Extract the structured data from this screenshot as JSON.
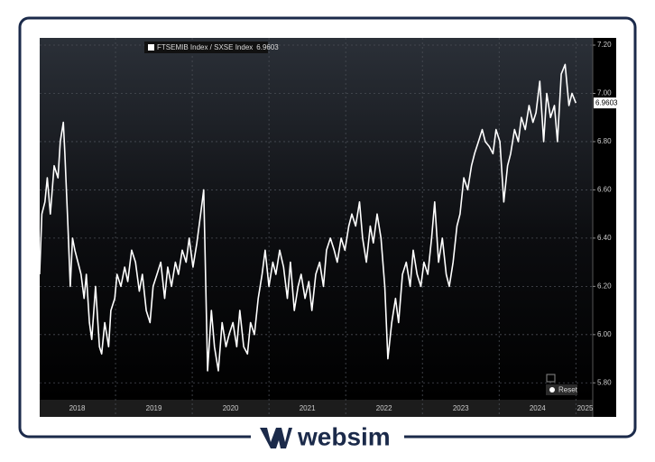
{
  "chart_data": {
    "type": "line",
    "legend_name": "FTSEMIB Index / SXSE Index",
    "last_value": 6.9603,
    "x": [
      2018.01,
      2018.04,
      2018.08,
      2018.11,
      2018.15,
      2018.2,
      2018.25,
      2018.28,
      2018.32,
      2018.34,
      2018.38,
      2018.41,
      2018.44,
      2018.47,
      2018.51,
      2018.55,
      2018.59,
      2018.62,
      2018.66,
      2018.69,
      2018.74,
      2018.76,
      2018.79,
      2018.82,
      2018.86,
      2018.91,
      2018.94,
      2018.99,
      2019.02,
      2019.07,
      2019.12,
      2019.16,
      2019.21,
      2019.26,
      2019.31,
      2019.35,
      2019.4,
      2019.45,
      2019.49,
      2019.54,
      2019.59,
      2019.64,
      2019.68,
      2019.73,
      2019.78,
      2019.82,
      2019.87,
      2019.92,
      2019.96,
      2020.01,
      2020.06,
      2020.11,
      2020.15,
      2020.2,
      2020.25,
      2020.29,
      2020.34,
      2020.39,
      2020.44,
      2020.48,
      2020.53,
      2020.58,
      2020.62,
      2020.67,
      2020.72,
      2020.76,
      2020.81,
      2020.86,
      2020.91,
      2020.95,
      2021.0,
      2021.05,
      2021.09,
      2021.14,
      2021.19,
      2021.24,
      2021.28,
      2021.33,
      2021.38,
      2021.42,
      2021.47,
      2021.52,
      2021.56,
      2021.61,
      2021.66,
      2021.71,
      2021.75,
      2021.8,
      2021.85,
      2021.89,
      2021.94,
      2021.99,
      2022.04,
      2022.08,
      2022.13,
      2022.18,
      2022.22,
      2022.27,
      2022.32,
      2022.36,
      2022.41,
      2022.46,
      2022.51,
      2022.55,
      2022.6,
      2022.65,
      2022.69,
      2022.74,
      2022.79,
      2022.84,
      2022.88,
      2022.93,
      2022.98,
      2023.02,
      2023.07,
      2023.12,
      2023.16,
      2023.21,
      2023.26,
      2023.31,
      2023.35,
      2023.4,
      2023.45,
      2023.49,
      2023.54,
      2023.59,
      2023.64,
      2023.68,
      2023.73,
      2023.78,
      2023.82,
      2023.87,
      2023.92,
      2023.96,
      2024.01,
      2024.06,
      2024.11,
      2024.15,
      2024.2,
      2024.25,
      2024.29,
      2024.34,
      2024.39,
      2024.44,
      2024.48,
      2024.53,
      2024.58,
      2024.62,
      2024.67,
      2024.72,
      2024.76,
      2024.81,
      2024.86,
      2024.91,
      2024.95,
      2025.0
    ],
    "series": [
      {
        "name": "FTSEMIB Index / SXSE Index",
        "color": "#ffffff",
        "values": [
          6.25,
          6.5,
          6.55,
          6.65,
          6.5,
          6.7,
          6.65,
          6.8,
          6.88,
          6.75,
          6.45,
          6.2,
          6.4,
          6.35,
          6.3,
          6.25,
          6.15,
          6.25,
          6.05,
          5.98,
          6.2,
          6.1,
          5.95,
          5.92,
          6.05,
          5.95,
          6.1,
          6.15,
          6.25,
          6.2,
          6.28,
          6.22,
          6.35,
          6.3,
          6.18,
          6.25,
          6.1,
          6.05,
          6.2,
          6.25,
          6.3,
          6.15,
          6.28,
          6.2,
          6.3,
          6.25,
          6.35,
          6.3,
          6.4,
          6.28,
          6.38,
          6.5,
          6.6,
          5.85,
          6.1,
          5.95,
          5.85,
          6.05,
          5.95,
          6.0,
          6.05,
          5.95,
          6.1,
          5.95,
          5.92,
          6.05,
          6.0,
          6.15,
          6.25,
          6.35,
          6.2,
          6.3,
          6.25,
          6.35,
          6.28,
          6.15,
          6.3,
          6.1,
          6.2,
          6.25,
          6.15,
          6.22,
          6.1,
          6.25,
          6.3,
          6.2,
          6.35,
          6.4,
          6.35,
          6.3,
          6.4,
          6.35,
          6.45,
          6.5,
          6.45,
          6.55,
          6.4,
          6.3,
          6.45,
          6.38,
          6.5,
          6.4,
          6.2,
          5.9,
          6.05,
          6.15,
          6.05,
          6.25,
          6.3,
          6.2,
          6.35,
          6.25,
          6.2,
          6.3,
          6.25,
          6.4,
          6.55,
          6.3,
          6.4,
          6.25,
          6.2,
          6.3,
          6.45,
          6.5,
          6.65,
          6.6,
          6.7,
          6.75,
          6.8,
          6.85,
          6.8,
          6.78,
          6.75,
          6.85,
          6.8,
          6.55,
          6.7,
          6.75,
          6.85,
          6.8,
          6.9,
          6.85,
          6.95,
          6.88,
          6.92,
          7.05,
          6.8,
          7.0,
          6.9,
          6.95,
          6.8,
          7.08,
          7.12,
          6.95,
          7.0,
          6.96
        ]
      }
    ],
    "xlim": [
      2018,
      2025.22
    ],
    "ylim": [
      5.73,
      7.23
    ],
    "xticks": [
      {
        "value": 2018.5,
        "label": "2018"
      },
      {
        "value": 2019.5,
        "label": "2019"
      },
      {
        "value": 2020.5,
        "label": "2020"
      },
      {
        "value": 2021.5,
        "label": "2021"
      },
      {
        "value": 2022.5,
        "label": "2022"
      },
      {
        "value": 2023.5,
        "label": "2023"
      },
      {
        "value": 2024.5,
        "label": "2024"
      },
      {
        "value": 2025.12,
        "label": "2025"
      }
    ],
    "yticks": [
      {
        "value": 5.8,
        "label": "5.80"
      },
      {
        "value": 6.0,
        "label": "6.00"
      },
      {
        "value": 6.2,
        "label": "6.20"
      },
      {
        "value": 6.4,
        "label": "6.40"
      },
      {
        "value": 6.6,
        "label": "6.60"
      },
      {
        "value": 6.8,
        "label": "6.80"
      },
      {
        "value": 7.0,
        "label": "7.00"
      },
      {
        "value": 7.2,
        "label": "7.20"
      }
    ],
    "grid": true
  },
  "ui": {
    "reset_button": "Reset"
  },
  "branding": {
    "logo_text": "websim"
  }
}
